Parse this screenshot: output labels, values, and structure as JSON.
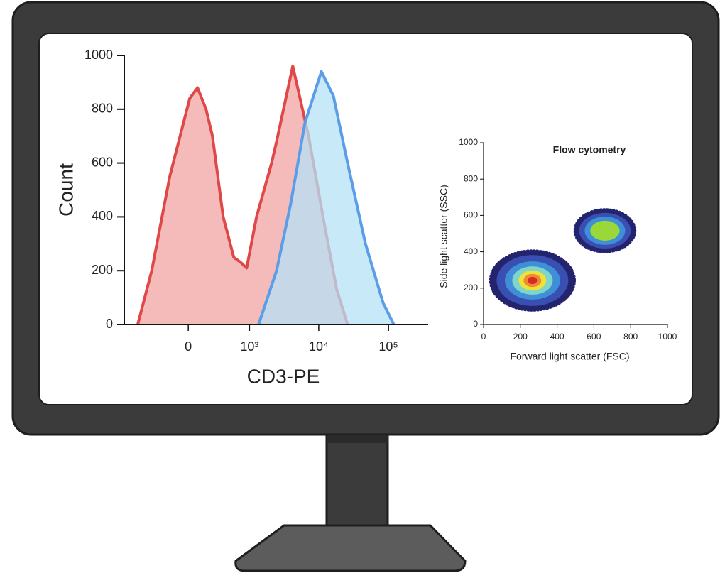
{
  "chart_data": [
    {
      "type": "area",
      "xlabel": "CD3-PE",
      "ylabel": "Count",
      "xscale": "biexponential",
      "xlim": [
        -1100,
        370000
      ],
      "ylim": [
        0,
        1000
      ],
      "xticks": [
        0,
        {
          "value": 1000,
          "label": "10³"
        },
        {
          "value": 10000,
          "label": "10⁴"
        },
        {
          "value": 100000,
          "label": "10⁵"
        }
      ],
      "yticks": [
        0,
        200,
        400,
        600,
        800,
        1000
      ],
      "series": [
        {
          "color": "#e04848",
          "fill": "#f2a3a3",
          "x": [
            -690,
            -410,
            -175,
            13,
            84,
            168,
            239,
            384,
            575,
            743,
            907,
            1270,
            2100,
            2480,
            4240,
            7150,
            11500,
            18100,
            25900
          ],
          "values": [
            0,
            200,
            550,
            840,
            880,
            800,
            700,
            400,
            250,
            230,
            210,
            400,
            600,
            680,
            960,
            700,
            400,
            130,
            0
          ]
        },
        {
          "color": "#5b9de6",
          "fill": "#b6e2f6",
          "x": [
            1360,
            2480,
            3970,
            6340,
            10900,
            16200,
            25900,
            46700,
            83700,
            119000
          ],
          "values": [
            0,
            200,
            450,
            750,
            940,
            850,
            600,
            300,
            80,
            0
          ]
        }
      ]
    },
    {
      "type": "density",
      "title": "Flow cytometry",
      "xlabel": "Forward light scatter (FSC)",
      "ylabel": "Side light scatter (SSC)",
      "xlim": [
        0,
        1000
      ],
      "ylim": [
        0,
        1000
      ],
      "xticks": [
        0,
        200,
        400,
        600,
        800,
        1000
      ],
      "yticks": [
        0,
        200,
        400,
        600,
        800,
        1000
      ],
      "clusters": [
        {
          "x": 266,
          "y": 242,
          "levels": [
            {
              "color": "#23236e",
              "rx": 230,
              "ry": 165
            },
            {
              "color": "#3a4fb2",
              "rx": 195,
              "ry": 140
            },
            {
              "color": "#3f8fd8",
              "rx": 150,
              "ry": 105
            },
            {
              "color": "#7fd6c8",
              "rx": 110,
              "ry": 78
            },
            {
              "color": "#ebe23c",
              "rx": 75,
              "ry": 55
            },
            {
              "color": "#f08a30",
              "rx": 48,
              "ry": 36
            },
            {
              "color": "#d42a2a",
              "rx": 25,
              "ry": 20
            }
          ]
        },
        {
          "x": 660,
          "y": 516,
          "levels": [
            {
              "color": "#23236e",
              "rx": 165,
              "ry": 118
            },
            {
              "color": "#3a4fb2",
              "rx": 140,
              "ry": 98
            },
            {
              "color": "#3f8fd8",
              "rx": 110,
              "ry": 78
            },
            {
              "color": "#9ad83a",
              "rx": 80,
              "ry": 55
            }
          ]
        }
      ]
    }
  ]
}
